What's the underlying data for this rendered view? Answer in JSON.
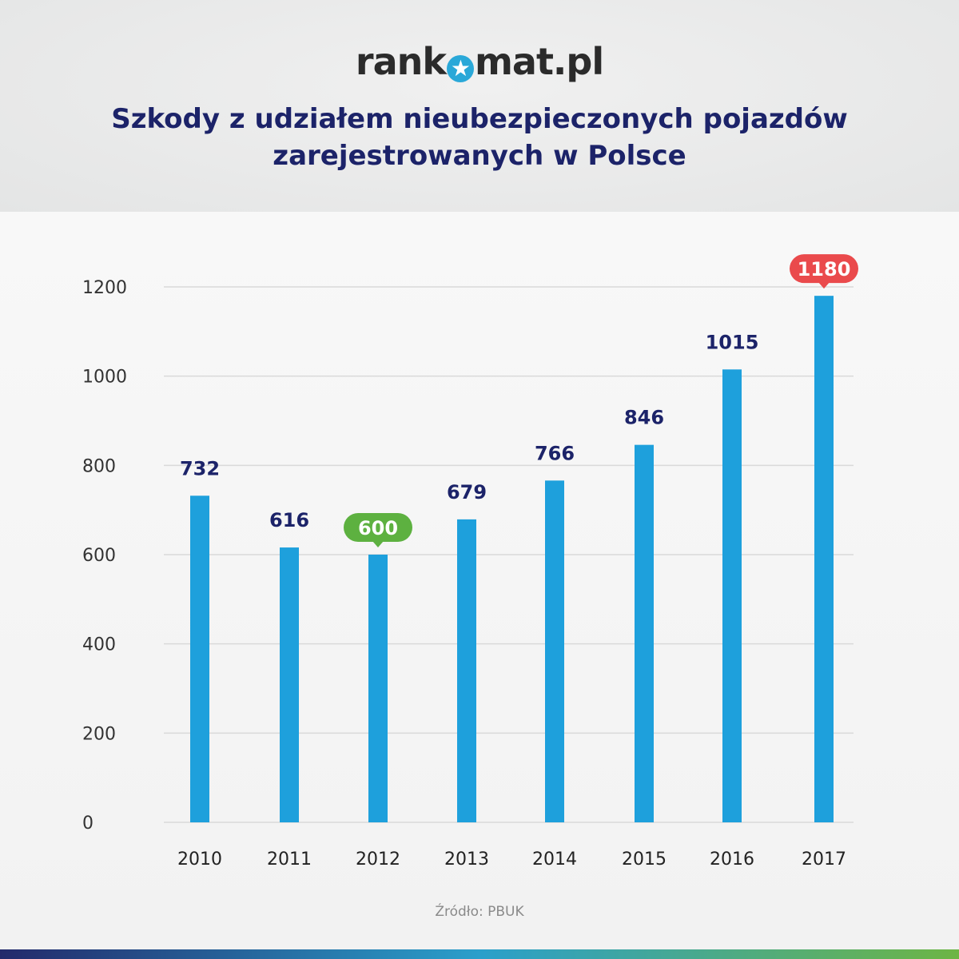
{
  "logo": {
    "text_left": "rank",
    "text_right": "mat.pl",
    "icon": "star-icon"
  },
  "title_line1": "Szkody z udziałem nieubezpieczonych pojazdów",
  "title_line2": "zarejestrowanych w Polsce",
  "source": "Źródło: PBUK",
  "colors": {
    "bar": "#1ea0dc",
    "title": "#1c2369",
    "min_badge": "#5db140",
    "max_badge": "#ea4a4c",
    "label": "#1c2369"
  },
  "chart_data": {
    "type": "bar",
    "title": "Szkody z udziałem nieubezpieczonych pojazdów zarejestrowanych w Polsce",
    "categories": [
      "2010",
      "2011",
      "2012",
      "2013",
      "2014",
      "2015",
      "2016",
      "2017"
    ],
    "values": [
      732,
      616,
      600,
      679,
      766,
      846,
      1015,
      1180
    ],
    "ylim": [
      0,
      1200
    ],
    "yticks": [
      0,
      200,
      400,
      600,
      800,
      1000,
      1200
    ],
    "grid": true,
    "highlight": {
      "min_index": 2,
      "max_index": 7
    }
  }
}
